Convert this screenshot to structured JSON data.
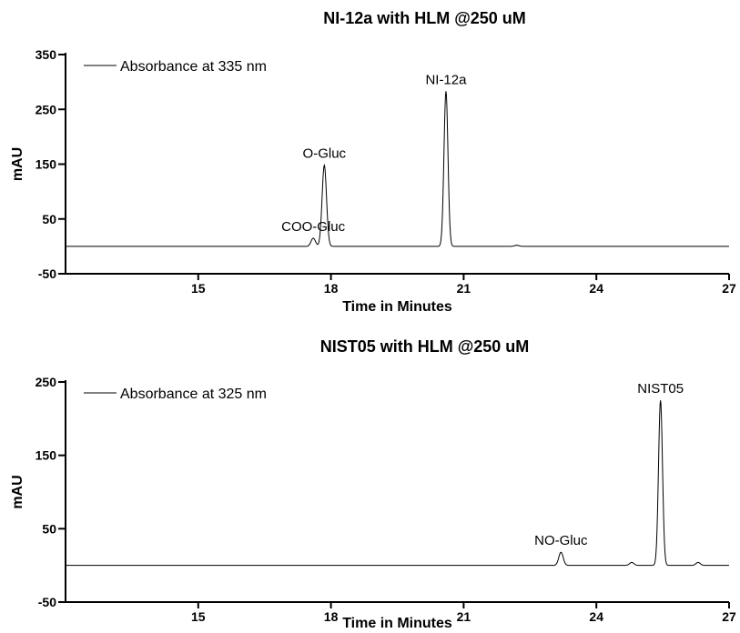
{
  "chart_data": [
    {
      "type": "line",
      "title": "NI-12a with HLM @250 uM",
      "xlabel": "Time in Minutes",
      "ylabel": "mAU",
      "xlim": [
        12,
        27
      ],
      "ylim": [
        -50,
        350
      ],
      "xticks": [
        15,
        18,
        21,
        24,
        27
      ],
      "yticks": [
        -50,
        50,
        150,
        250,
        350
      ],
      "legend": {
        "label": "Absorbance at 335 nm",
        "position": "top-left"
      },
      "baseline": 0,
      "peaks": [
        {
          "x": 17.6,
          "height": 15,
          "width": 0.05
        },
        {
          "x": 17.85,
          "height": 148,
          "width": 0.05
        },
        {
          "x": 20.6,
          "height": 283,
          "width": 0.045
        },
        {
          "x": 22.2,
          "height": 2,
          "width": 0.05
        }
      ],
      "annotations": [
        {
          "text": "COO-Gluc",
          "x": 17.6,
          "y": 15
        },
        {
          "text": "O-Gluc",
          "x": 17.85,
          "y": 148
        },
        {
          "text": "NI-12a",
          "x": 20.6,
          "y": 283
        }
      ]
    },
    {
      "type": "line",
      "title": "NIST05 with HLM @250 uM",
      "xlabel": "Time in Minutes",
      "ylabel": "mAU",
      "xlim": [
        12,
        27
      ],
      "ylim": [
        -50,
        250
      ],
      "xticks": [
        15,
        18,
        21,
        24,
        27
      ],
      "yticks": [
        -50,
        50,
        150,
        250
      ],
      "legend": {
        "label": "Absorbance at 325 nm",
        "position": "top-left"
      },
      "baseline": 0,
      "peaks": [
        {
          "x": 23.2,
          "height": 18,
          "width": 0.05
        },
        {
          "x": 24.8,
          "height": 4,
          "width": 0.05
        },
        {
          "x": 25.45,
          "height": 225,
          "width": 0.045
        },
        {
          "x": 26.3,
          "height": 4,
          "width": 0.05
        }
      ],
      "annotations": [
        {
          "text": "NO-Gluc",
          "x": 23.2,
          "y": 18
        },
        {
          "text": "NIST05",
          "x": 25.45,
          "y": 225
        }
      ]
    }
  ]
}
